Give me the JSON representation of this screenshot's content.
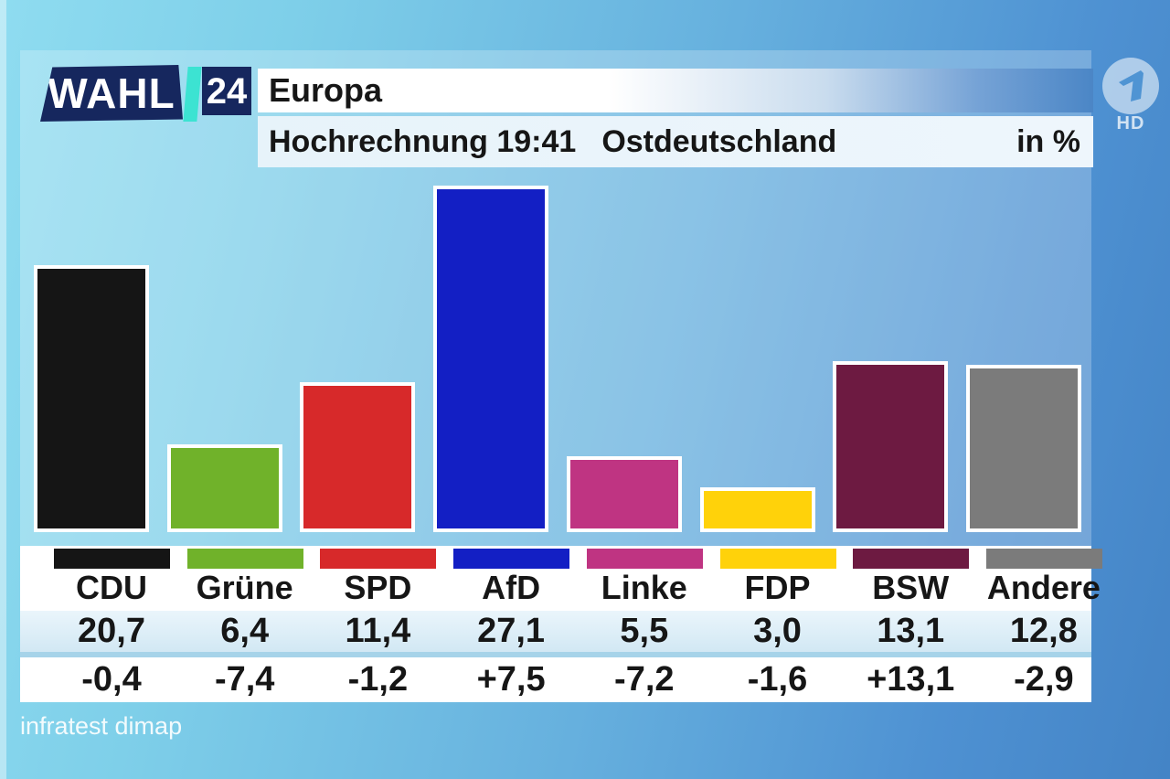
{
  "brand": {
    "wahl": "WAHL",
    "year": "24",
    "channel_badge": "HD"
  },
  "header": {
    "title": "Europa",
    "projection": "Hochrechnung 19:41",
    "region": "Ostdeutschland",
    "unit_label": "in %"
  },
  "chart_data": {
    "type": "bar",
    "title": "Europa",
    "subtitle": "Hochrechnung 19:41",
    "region": "Ostdeutschland",
    "unit": "%",
    "categories": [
      "CDU",
      "Grüne",
      "SPD",
      "AfD",
      "Linke",
      "FDP",
      "BSW",
      "Andere"
    ],
    "values": [
      20.7,
      6.4,
      11.4,
      27.1,
      5.5,
      3.0,
      13.1,
      12.8
    ],
    "value_labels": [
      "20,7",
      "6,4",
      "11,4",
      "27,1",
      "5,5",
      "3,0",
      "13,1",
      "12,8"
    ],
    "change_labels": [
      "-0,4",
      "-7,4",
      "-1,2",
      "+7,5",
      "-7,2",
      "-1,6",
      "+13,1",
      "-2,9"
    ],
    "colors": [
      "#151515",
      "#70b22a",
      "#d7292a",
      "#131fc4",
      "#bf3482",
      "#ffd20a",
      "#6d1a41",
      "#7b7b7b"
    ],
    "ylim": [
      0,
      28
    ],
    "grid": false,
    "legend_position": "table-below-bars",
    "source": "infratest dimap"
  },
  "style_colors": {
    "navy": "#16275e",
    "cyan_accent": "#3ce3d2",
    "band_blue": "#4b86c6",
    "table_value_row": "#d9ecf7",
    "separator": "#a6d3e9"
  }
}
